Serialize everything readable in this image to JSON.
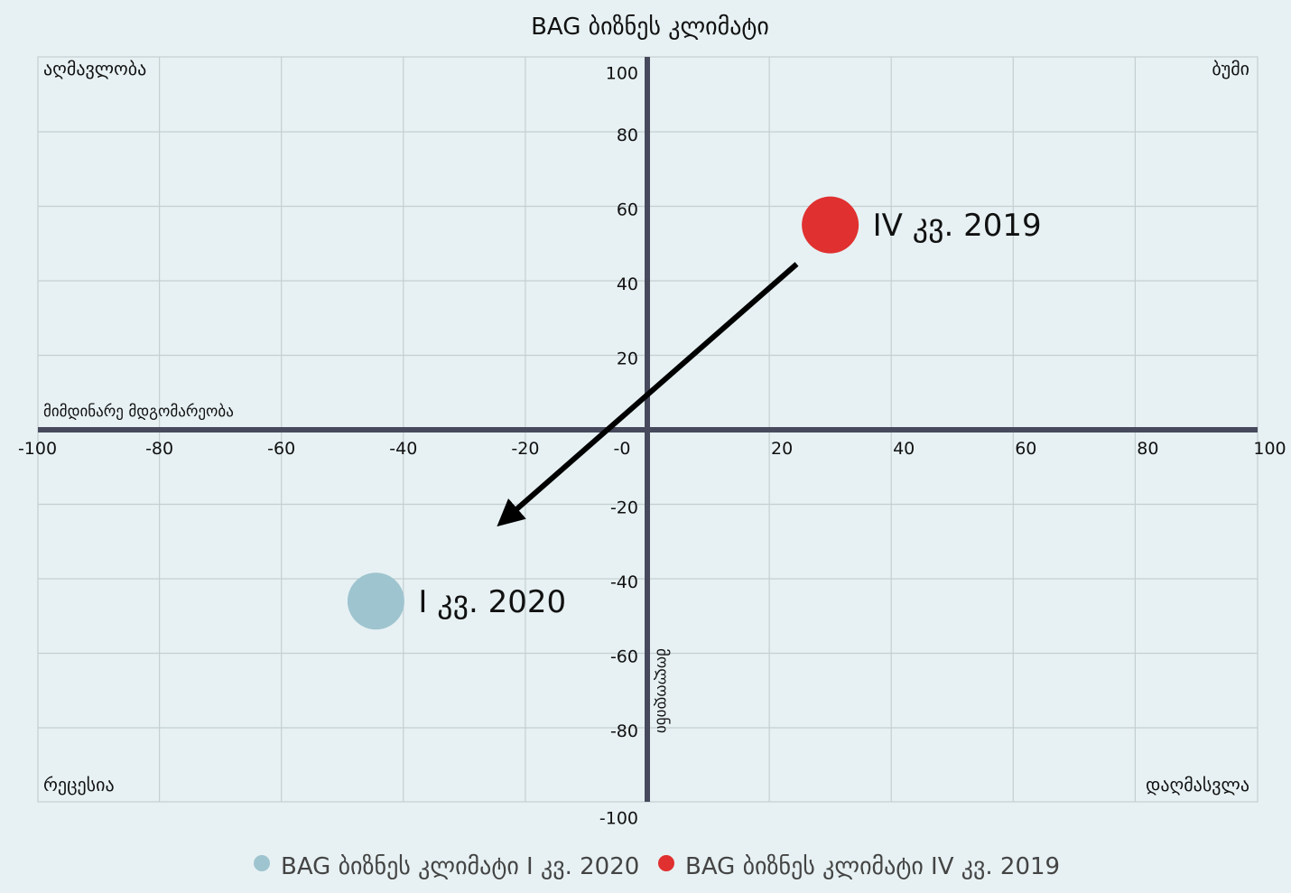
{
  "colors": {
    "background": "#e7f1f3",
    "grid": "#c4cfd2",
    "axis": "#474a5c",
    "series_2020": "#9ec4cf",
    "series_2019": "#e03030",
    "arrow": "#000000"
  },
  "chart_data": {
    "type": "scatter",
    "title": "BAG ბიზნეს კლიმატი",
    "xlim": [
      -100,
      100
    ],
    "ylim": [
      -100,
      100
    ],
    "grid": true,
    "x_ticks": [
      "-100",
      "-80",
      "-60",
      "-40",
      "-20",
      "-0",
      "20",
      "40",
      "60",
      "80",
      "100"
    ],
    "y_ticks": [
      "100",
      "80",
      "60",
      "40",
      "20",
      "-20",
      "-40",
      "-60",
      "-80",
      "-100"
    ],
    "x_axis_label": "მიმდინარე მდგომარეობა",
    "y_axis_label": "მოლოდინი",
    "quadrant_labels": {
      "top_left": "აღმავლობა",
      "top_right": "ბუმი",
      "bottom_left": "რეცესია",
      "bottom_right": "დაღმასვლა"
    },
    "series": [
      {
        "name": "BAG ბიზნეს კლიმატი I კვ. 2020",
        "label": "I კვ. 2020",
        "color": "#9ec4cf",
        "x": -44.5,
        "y": -46
      },
      {
        "name": "BAG ბიზნეს კლიმატი IV კვ. 2019",
        "label": "IV კვ. 2019",
        "color": "#e03030",
        "x": 30,
        "y": 55
      }
    ],
    "arrow": {
      "from": [
        24.5,
        44.5
      ],
      "to": [
        -24,
        -25
      ]
    },
    "legend_position": "bottom"
  }
}
